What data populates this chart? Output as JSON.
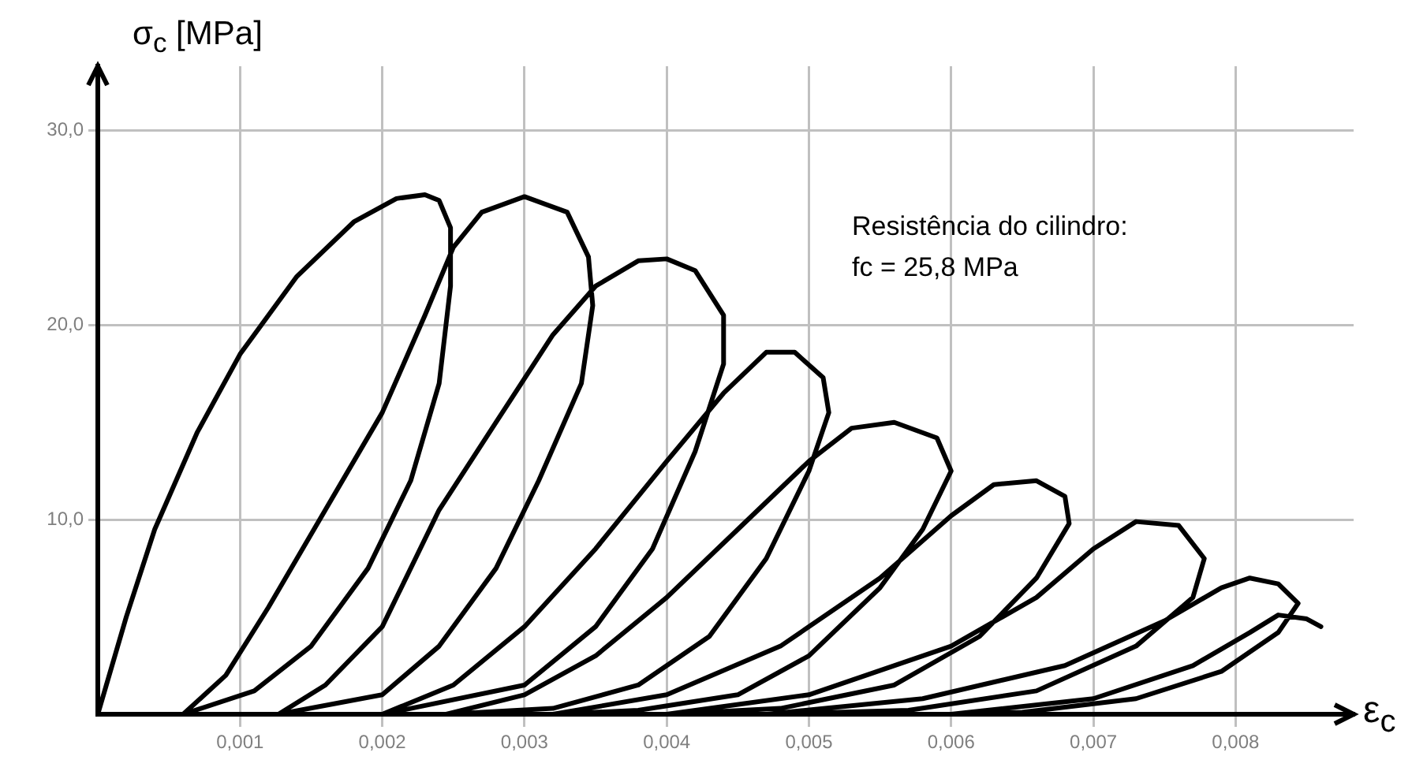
{
  "chart_data": {
    "type": "line",
    "xlabel": "ε$_{c}$",
    "ylabel": "σ$_{c}$ [MPa]",
    "annotations": [
      "Resistência do cilindro:",
      "fc = 25,8 MPa"
    ],
    "xlim": [
      0,
      0.00883
    ],
    "ylim": [
      0,
      33.3
    ],
    "xticks": [
      {
        "value": 0.001,
        "label": "0,001"
      },
      {
        "value": 0.002,
        "label": "0,002"
      },
      {
        "value": 0.003,
        "label": "0,003"
      },
      {
        "value": 0.004,
        "label": "0,004"
      },
      {
        "value": 0.005,
        "label": "0,005"
      },
      {
        "value": 0.006,
        "label": "0,006"
      },
      {
        "value": 0.007,
        "label": "0,007"
      },
      {
        "value": 0.008,
        "label": "0,008"
      }
    ],
    "yticks": [
      {
        "value": 10,
        "label": "10,0"
      },
      {
        "value": 20,
        "label": "20,0"
      },
      {
        "value": 30,
        "label": "30,0"
      }
    ],
    "grid": true,
    "marker": "none",
    "series": [
      {
        "color": "#000000",
        "x": [
          0,
          0.0002,
          0.0004,
          0.0007,
          0.001,
          0.0014,
          0.0018,
          0.0021,
          0.0023,
          0.0024,
          0.00248,
          0.00248,
          0.0024,
          0.0022,
          0.0019,
          0.0015,
          0.0011,
          0.0006,
          0.0009,
          0.0012,
          0.0016,
          0.002,
          0.0023,
          0.0025,
          0.0027,
          0.003,
          0.0033,
          0.00345,
          0.00348,
          0.0034,
          0.0031,
          0.0028,
          0.0024,
          0.002,
          0.00127,
          0.0016,
          0.002,
          0.0024,
          0.0028,
          0.0032,
          0.0035,
          0.0038,
          0.004,
          0.0042,
          0.0044,
          0.0044,
          0.0042,
          0.0039,
          0.0035,
          0.003,
          0.002,
          0.0025,
          0.003,
          0.0035,
          0.004,
          0.0044,
          0.0047,
          0.0049,
          0.0051,
          0.00514,
          0.005,
          0.0047,
          0.0043,
          0.0038,
          0.0032,
          0.00245,
          0.003,
          0.0035,
          0.004,
          0.0045,
          0.005,
          0.0053,
          0.0056,
          0.0059,
          0.006,
          0.0058,
          0.0055,
          0.005,
          0.0045,
          0.0038,
          0.0032,
          0.004,
          0.0048,
          0.0055,
          0.006,
          0.0063,
          0.0066,
          0.0068,
          0.00683,
          0.0066,
          0.0062,
          0.0056,
          0.0048,
          0.004,
          0.005,
          0.006,
          0.0066,
          0.007,
          0.0073,
          0.0076,
          0.00778,
          0.0077,
          0.0073,
          0.0066,
          0.0057,
          0.0047,
          0.0058,
          0.0068,
          0.0075,
          0.0079,
          0.0081,
          0.0083,
          0.00844,
          0.0083,
          0.0079,
          0.0073,
          0.0065,
          0.006,
          0.007,
          0.0077,
          0.0081,
          0.0083,
          0.0085,
          0.0086
        ],
        "values": [
          0,
          5,
          9.5,
          14.5,
          18.5,
          22.5,
          25.3,
          26.5,
          26.7,
          26.4,
          25,
          22,
          17,
          12,
          7.5,
          3.5,
          1.2,
          0,
          2,
          5.5,
          10.5,
          15.5,
          20.5,
          24,
          25.8,
          26.6,
          25.8,
          23.5,
          21,
          17,
          12,
          7.5,
          3.5,
          1,
          0,
          1.5,
          4.5,
          10.5,
          15,
          19.5,
          22,
          23.3,
          23.4,
          22.8,
          20.5,
          18,
          13.5,
          8.5,
          4.5,
          1.5,
          0,
          1.5,
          4.5,
          8.5,
          13,
          16.5,
          18.6,
          18.6,
          17.3,
          15.5,
          12.5,
          8,
          4,
          1.5,
          0.3,
          0,
          1,
          3,
          6,
          9.5,
          13,
          14.7,
          15,
          14.2,
          12.5,
          9.5,
          6.5,
          3,
          1,
          0.2,
          0,
          1,
          3.5,
          7,
          10.2,
          11.8,
          12,
          11.2,
          9.8,
          7,
          4,
          1.5,
          0.3,
          0,
          1,
          3.5,
          6,
          8.5,
          9.9,
          9.7,
          8,
          6,
          3.5,
          1.2,
          0.2,
          0,
          0.8,
          2.5,
          4.8,
          6.5,
          7,
          6.7,
          5.7,
          4.2,
          2.2,
          0.8,
          0.1,
          0,
          0.8,
          2.5,
          4.2,
          5.1,
          4.9,
          4.5
        ]
      }
    ]
  }
}
